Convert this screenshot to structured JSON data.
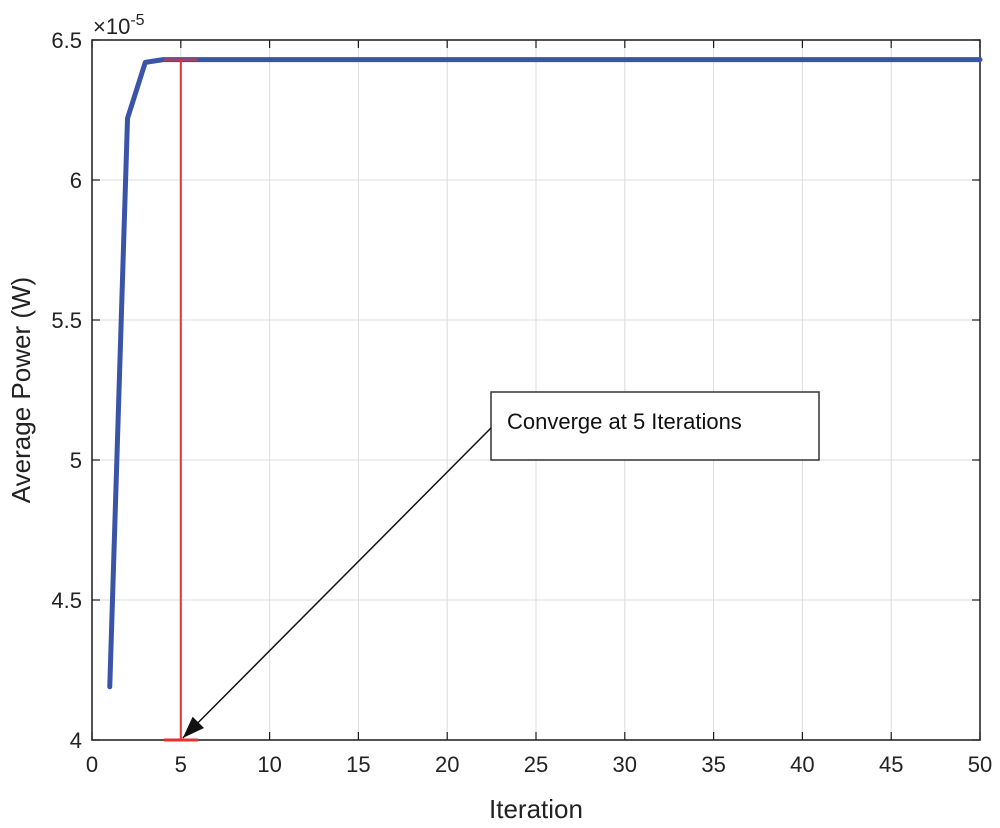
{
  "chart_data": {
    "type": "line",
    "xlabel": "Iteration",
    "ylabel": "Average Power (W)",
    "y_exponent_label": "×10",
    "y_exponent_power": "-5",
    "xlim": [
      0,
      50
    ],
    "ylim": [
      4,
      6.5
    ],
    "x_ticks": [
      0,
      5,
      10,
      15,
      20,
      25,
      30,
      35,
      40,
      45,
      50
    ],
    "x_tick_labels": [
      "0",
      "5",
      "10",
      "15",
      "20",
      "25",
      "30",
      "35",
      "40",
      "45",
      "50"
    ],
    "y_ticks": [
      4,
      4.5,
      5,
      5.5,
      6,
      6.5
    ],
    "y_tick_labels": [
      "4",
      "4.5",
      "5",
      "5.5",
      "6",
      "6.5"
    ],
    "grid": true,
    "series": [
      {
        "color": "#3a54a8",
        "x": [
          1,
          2,
          3,
          4,
          5,
          50
        ],
        "y": [
          4.19,
          6.22,
          6.42,
          6.43,
          6.43,
          6.43
        ]
      }
    ],
    "convergence_marker": {
      "x": 5,
      "y_bottom": 4,
      "y_top": 6.43,
      "color": "#e8312f"
    },
    "annotation": {
      "text": "Converge at 5 Iterations",
      "arrow_target_x": 5,
      "arrow_target_y": 4
    }
  }
}
